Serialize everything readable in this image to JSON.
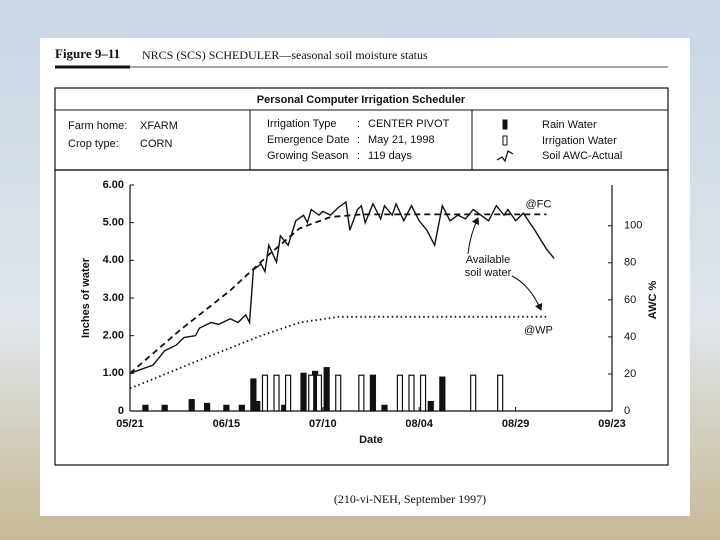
{
  "figure": {
    "label": "Figure 9–11",
    "caption": "NRCS (SCS) SCHEDULER—seasonal soil moisture status",
    "source": "(210-vi-NEH, September 1997)"
  },
  "info": {
    "title": "Personal Computer Irrigation Scheduler",
    "separator": ":",
    "farm": [
      {
        "label": "Farm home:",
        "value": "XFARM"
      },
      {
        "label": "Crop type:",
        "value": "CORN"
      }
    ],
    "fields": [
      {
        "label": "Irrigation Type",
        "value": "CENTER PIVOT"
      },
      {
        "label": "Emergence Date",
        "value": "May 21, 1998"
      },
      {
        "label": "Growing Season",
        "value": "119 days"
      }
    ]
  },
  "chart_data": {
    "type": "line",
    "ylabel": "Inches of water",
    "y2label": "AWC %",
    "xlabel": "Date",
    "xlim": [
      "05/21",
      "09/23"
    ],
    "xticks": [
      "05/21",
      "06/15",
      "07/10",
      "08/04",
      "08/29",
      "09/23"
    ],
    "ylim": [
      0,
      6
    ],
    "yticks": [
      0,
      {
        "value": 1,
        "label": "1.00"
      },
      {
        "value": 2,
        "label": "2.00"
      },
      {
        "value": 3,
        "label": "3.00"
      },
      {
        "value": 4,
        "label": "4.00"
      },
      {
        "value": 5,
        "label": "5.00"
      },
      {
        "value": 6,
        "label": "6.00"
      }
    ],
    "y2lim": [
      0,
      122
    ],
    "y2ticks": [
      0,
      20,
      40,
      60,
      80,
      100
    ],
    "annotation": [
      "Available",
      "soil water"
    ],
    "series": [
      {
        "name": "Rain Water",
        "style": "bar-filled",
        "color": "#111111",
        "x": [
          "05/25",
          "05/30",
          "06/06",
          "06/10",
          "06/15",
          "06/19",
          "06/22",
          "06/23",
          "06/30",
          "07/05",
          "07/08",
          "07/11",
          "07/23",
          "07/26",
          "08/07",
          "08/10"
        ],
        "values": [
          0.15,
          0.15,
          0.3,
          0.2,
          0.15,
          0.15,
          0.85,
          0.25,
          0.15,
          1.0,
          1.05,
          1.15,
          0.95,
          0.15,
          0.25,
          0.9
        ]
      },
      {
        "name": "Irrigation Water",
        "style": "bar-open",
        "color": "#111111",
        "x": [
          "06/25",
          "06/28",
          "07/01",
          "07/07",
          "07/09",
          "07/14",
          "07/20",
          "07/30",
          "08/02",
          "08/05",
          "08/18",
          "08/25"
        ],
        "values": [
          0.95,
          0.95,
          0.95,
          0.95,
          0.95,
          0.95,
          0.95,
          0.95,
          0.95,
          0.95,
          0.95,
          0.95
        ]
      },
      {
        "name": "Soil AWC-Actual",
        "style": "solid",
        "color": "#111111",
        "x": [
          "05/21",
          "05/27",
          "05/30",
          "06/02",
          "06/04",
          "06/07",
          "06/08",
          "06/11",
          "06/13",
          "06/16",
          "06/18",
          "06/20",
          "06/21",
          "06/22",
          "06/24",
          "06/25",
          "06/26",
          "06/28",
          "06/29",
          "07/01",
          "07/03",
          "07/05",
          "07/06",
          "07/07",
          "07/09",
          "07/10",
          "07/12",
          "07/14",
          "07/16",
          "07/17",
          "07/19",
          "07/20",
          "07/21",
          "07/23",
          "07/25",
          "07/26",
          "07/28",
          "07/29",
          "07/31",
          "08/02",
          "08/04",
          "08/06",
          "08/08",
          "08/10",
          "08/12",
          "08/14",
          "08/16",
          "08/18",
          "08/20",
          "08/22",
          "08/24",
          "08/26",
          "08/27",
          "08/29",
          "08/31",
          "09/03",
          "09/06",
          "09/08"
        ],
        "values": [
          1.0,
          1.22,
          1.6,
          1.75,
          1.95,
          2.0,
          2.2,
          2.35,
          2.3,
          2.45,
          2.35,
          2.55,
          2.35,
          3.75,
          3.9,
          3.7,
          4.4,
          3.95,
          4.65,
          4.4,
          5.05,
          5.2,
          5.0,
          5.35,
          5.2,
          5.3,
          5.2,
          5.4,
          5.55,
          4.8,
          5.35,
          5.45,
          5.0,
          5.5,
          5.1,
          5.45,
          5.2,
          5.5,
          5.05,
          5.45,
          5.05,
          4.8,
          4.4,
          5.45,
          5.05,
          5.2,
          5.1,
          5.35,
          5.2,
          5.05,
          5.45,
          5.2,
          5.35,
          5.05,
          5.25,
          4.8,
          4.3,
          4.05
        ]
      },
      {
        "name": "@FC",
        "style": "dashed",
        "color": "#111111",
        "x": [
          "05/21",
          "06/03",
          "06/16",
          "06/26",
          "07/04",
          "07/12",
          "07/20",
          "09/06"
        ],
        "values": [
          1.0,
          2.15,
          3.2,
          4.15,
          4.85,
          5.15,
          5.22,
          5.22
        ]
      },
      {
        "name": "@WP",
        "style": "dotted",
        "color": "#111111",
        "x": [
          "05/21",
          "06/08",
          "06/24",
          "07/04",
          "07/14",
          "09/06"
        ],
        "values": [
          0.6,
          1.35,
          2.0,
          2.35,
          2.5,
          2.5
        ]
      }
    ]
  }
}
